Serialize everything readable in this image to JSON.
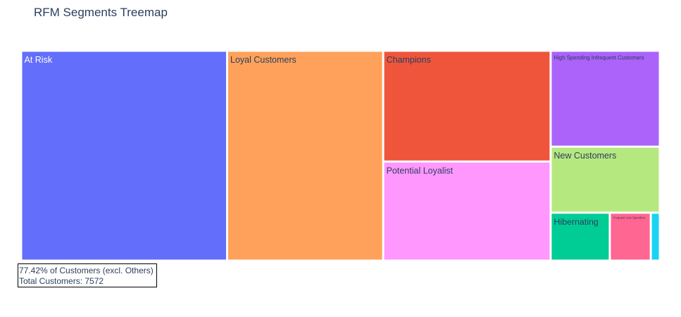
{
  "chart_data": {
    "type": "treemap",
    "title": "RFM Segments Treemap",
    "segments": [
      {
        "label": "At Risk",
        "value": 1980,
        "color": "#636efa",
        "label_color": "#ffffff"
      },
      {
        "label": "Loyal Customers",
        "value": 1500,
        "color": "#ffa15a",
        "label_color": "#2a3f5f"
      },
      {
        "label": "Champions",
        "value": 850,
        "color": "#ef553b",
        "label_color": "#2a3f5f"
      },
      {
        "label": "Potential Loyalist",
        "value": 760,
        "color": "#ff97ff",
        "label_color": "#2a3f5f"
      },
      {
        "label": "High Spending Infrequent Customers",
        "value": 480,
        "color": "#ab63fa",
        "label_color": "#2a3f5f"
      },
      {
        "label": "New Customers",
        "value": 330,
        "color": "#b6e880",
        "label_color": "#2a3f5f"
      },
      {
        "label": "Hibernating",
        "value": 130,
        "color": "#00cc96",
        "label_color": "#2a3f5f"
      },
      {
        "label": "Frequent Low Spenders",
        "value": 90,
        "color": "#ff6692",
        "label_color": "#2a3f5f"
      },
      {
        "label": "",
        "value": 20,
        "color": "#19d3f3",
        "label_color": "#2a3f5f"
      }
    ],
    "annotation": {
      "line1": "77.42% of Customers (excl. Others)",
      "line2": "Total Customers: 7572"
    }
  }
}
